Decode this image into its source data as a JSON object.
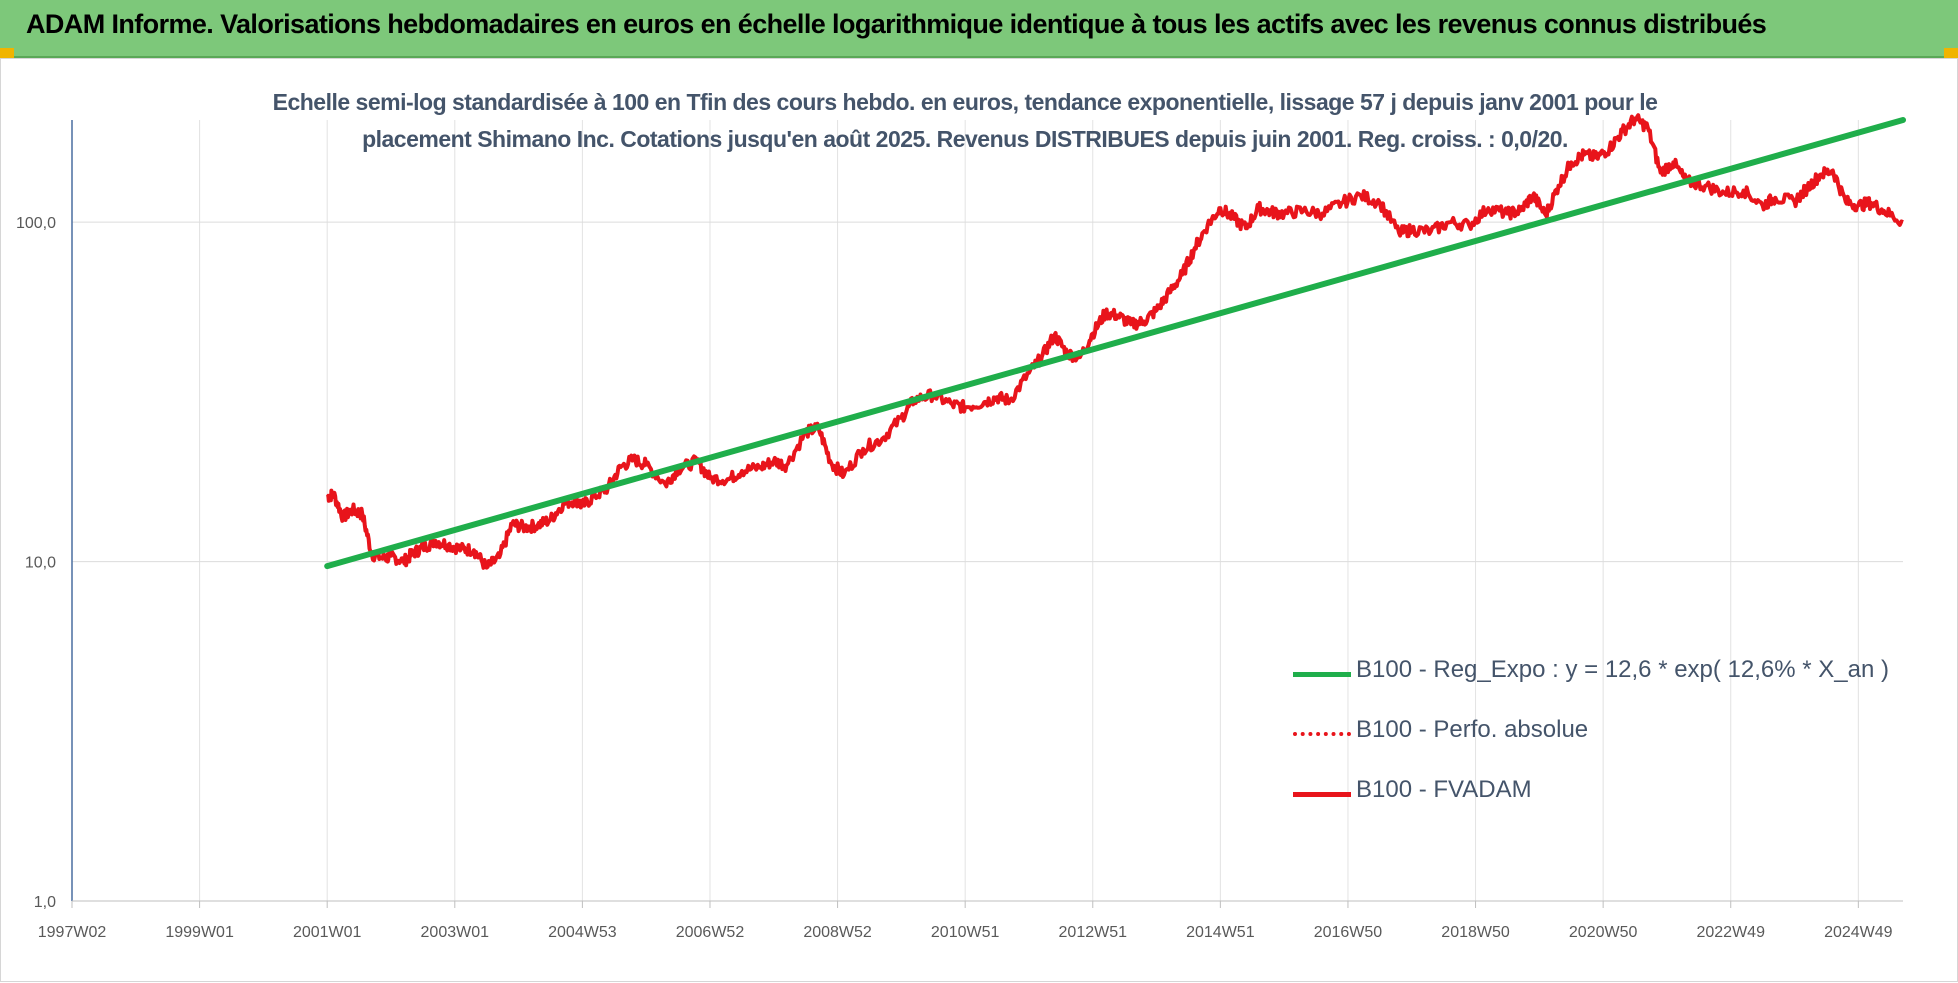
{
  "banner": {
    "title": "ADAM Informe. Valorisations hebdomadaires en euros en échelle logarithmique identique à tous les actifs avec les revenus connus distribués"
  },
  "chart_data": {
    "type": "line",
    "title": "Echelle semi-log standardisée à 100 en Tfin des cours hebdo. en euros, tendance exponentielle, lissage 57 j depuis janv 2001 pour le placement Shimano Inc. Cotations jusqu'en août 2025. Revenus DISTRIBUES depuis juin 2001. Reg. croiss. : 0,0/20.",
    "title_lines": [
      "Echelle semi-log standardisée à 100 en Tfin des cours hebdo. en euros, tendance exponentielle, lissage 57 j depuis janv 2001 pour le",
      "placement Shimano Inc. Cotations jusqu'en août 2025. Revenus DISTRIBUES depuis juin 2001. Reg. croiss. : 0,0/20."
    ],
    "y_scale": "log",
    "ylim": [
      1,
      200
    ],
    "y_ticks": [
      1,
      10,
      100
    ],
    "y_tick_labels": [
      "1,0",
      "10,0",
      "100,0"
    ],
    "xlim": [
      1997.0,
      2025.7
    ],
    "x_ticks": [
      1997.0,
      1999.0,
      2001.0,
      2003.0,
      2005.0,
      2007.0,
      2009.0,
      2011.0,
      2013.0,
      2015.0,
      2017.0,
      2019.0,
      2021.0,
      2023.0,
      2025.0
    ],
    "x_tick_labels": [
      "1997W02",
      "1999W01",
      "2001W01",
      "2003W01",
      "2004W53",
      "2006W52",
      "2008W52",
      "2010W51",
      "2012W51",
      "2014W51",
      "2016W50",
      "2018W50",
      "2020W50",
      "2022W49",
      "2024W49"
    ],
    "grid": true,
    "legend_position": "bottom-right",
    "colors": {
      "trend": "#1fae4b",
      "perf": "#e8141b",
      "fvadam": "#e8141b"
    },
    "legend": [
      {
        "label": "B100 - Reg_Expo : y = 12,6 * exp( 12,6% *  X_an )",
        "style": "solid-green"
      },
      {
        "label": "B100 - Perfo. absolue",
        "style": "dotted-red"
      },
      {
        "label": "B100 - FVADAM",
        "style": "solid-red"
      }
    ],
    "series": [
      {
        "name": "B100 - Reg_Expo : y = 12,6 * exp( 12,6% *  X_an )",
        "x": [
          2001.0,
          2025.7
        ],
        "y": [
          9.7,
          200
        ]
      },
      {
        "name": "B100 - FVADAM",
        "x": [
          2001.0,
          2001.1,
          2001.25,
          2001.4,
          2001.55,
          2001.7,
          2001.9,
          2002.0,
          2002.2,
          2002.35,
          2002.5,
          2002.7,
          2002.9,
          2003.1,
          2003.3,
          2003.5,
          2003.7,
          2003.9,
          2004.1,
          2004.3,
          2004.5,
          2004.7,
          2004.9,
          2005.0,
          2005.2,
          2005.4,
          2005.6,
          2005.8,
          2006.0,
          2006.3,
          2006.5,
          2006.8,
          2007.0,
          2007.3,
          2007.5,
          2007.8,
          2008.0,
          2008.2,
          2008.5,
          2008.7,
          2008.9,
          2009.1,
          2009.4,
          2009.7,
          2010.0,
          2010.2,
          2010.5,
          2010.8,
          2011.0,
          2011.3,
          2011.5,
          2011.7,
          2012.0,
          2012.2,
          2012.4,
          2012.6,
          2012.8,
          2013.0,
          2013.2,
          2013.4,
          2013.6,
          2013.8,
          2014.0,
          2014.2,
          2014.4,
          2014.6,
          2014.8,
          2015.0,
          2015.2,
          2015.4,
          2015.6,
          2015.8,
          2016.0,
          2016.3,
          2016.6,
          2016.9,
          2017.2,
          2017.5,
          2017.8,
          2018.0,
          2018.3,
          2018.6,
          2018.9,
          2019.2,
          2019.5,
          2019.7,
          2019.9,
          2020.1,
          2020.3,
          2020.5,
          2020.7,
          2020.9,
          2021.1,
          2021.3,
          2021.5,
          2021.7,
          2021.9,
          2022.1,
          2022.3,
          2022.6,
          2022.9,
          2023.2,
          2023.5,
          2023.7,
          2024.0,
          2024.2,
          2024.4,
          2024.6,
          2024.8,
          2025.0,
          2025.2,
          2025.4,
          2025.7
        ],
        "y": [
          15.5,
          15.8,
          13.5,
          14.2,
          13.8,
          10.5,
          10.2,
          10.4,
          10.0,
          10.6,
          11.0,
          11.5,
          11.2,
          10.9,
          10.8,
          9.6,
          10.3,
          12.9,
          12.6,
          12.8,
          13.3,
          14.8,
          15.2,
          14.6,
          15.6,
          16.5,
          19.0,
          20.0,
          19.3,
          16.9,
          18.7,
          19.8,
          17.6,
          17.5,
          18.5,
          19.0,
          19.8,
          19.2,
          24.0,
          24.8,
          19.5,
          18.0,
          21.5,
          23.0,
          26.5,
          30.0,
          31.0,
          29.0,
          28.5,
          29.5,
          30.5,
          29.8,
          36.0,
          40.0,
          46.5,
          41.0,
          40.0,
          47.0,
          54.0,
          53.0,
          50.0,
          51.0,
          55.0,
          62.0,
          70.0,
          84.0,
          98.0,
          110.0,
          103.0,
          96.0,
          110.0,
          107.0,
          106.0,
          108.0,
          106.0,
          114.0,
          120.0,
          114.0,
          93.0,
          95.0,
          94.0,
          100.0,
          98.0,
          110.0,
          106.0,
          108.0,
          120.0,
          105.0,
          128.0,
          150.0,
          158.0,
          155.0,
          165.0,
          185.0,
          202.0,
          190.0,
          140.0,
          150.0,
          132.0,
          128.0,
          122.0,
          124.0,
          112.0,
          118.0,
          115.0,
          126.0,
          138.0,
          142.0,
          115.0,
          112.0,
          114.0,
          108.0,
          100.0
        ]
      }
    ]
  }
}
